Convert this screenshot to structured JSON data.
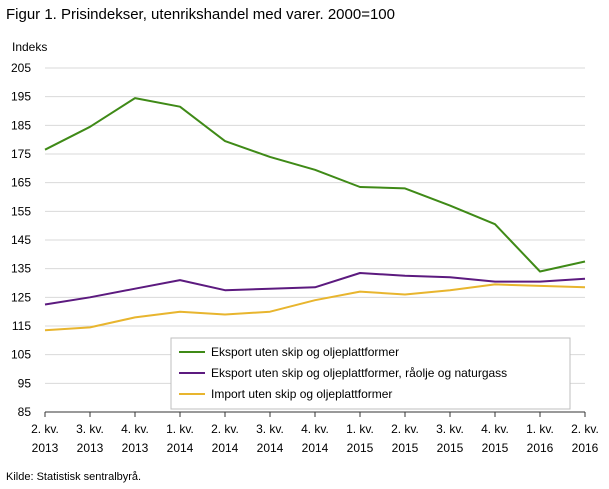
{
  "figure_title": "Figur 1. Prisindekser, utenrikshandel med varer. 2000=100",
  "source": "Kilde: Statistisk sentralbyrå.",
  "colors": {
    "series_0": "#3f8a17",
    "series_1": "#5c1a7f",
    "series_2": "#e8b52e",
    "grid": "#d9d9d9",
    "axis": "#333333"
  },
  "chart_data": {
    "type": "line",
    "title": "Figur 1. Prisindekser, utenrikshandel med varer. 2000=100",
    "ylabel": "Indeks",
    "xlabel": "",
    "ylim": [
      85,
      205
    ],
    "yticks": [
      85,
      95,
      105,
      115,
      125,
      135,
      145,
      155,
      165,
      175,
      185,
      195,
      205
    ],
    "grid": "horizontal",
    "legend_position": "bottom-right",
    "categories": [
      [
        "2. kv.",
        "2013"
      ],
      [
        "3. kv.",
        "2013"
      ],
      [
        "4. kv.",
        "2013"
      ],
      [
        "1. kv.",
        "2014"
      ],
      [
        "2. kv.",
        "2014"
      ],
      [
        "3. kv.",
        "2014"
      ],
      [
        "4. kv.",
        "2014"
      ],
      [
        "1. kv.",
        "2015"
      ],
      [
        "2. kv.",
        "2015"
      ],
      [
        "3. kv.",
        "2015"
      ],
      [
        "4. kv.",
        "2015"
      ],
      [
        "1. kv.",
        "2016"
      ],
      [
        "2. kv.",
        "2016"
      ]
    ],
    "series": [
      {
        "name": "Eksport uten skip og oljeplattformer",
        "values": [
          176.5,
          184.5,
          194.5,
          191.5,
          179.5,
          174,
          169.5,
          163.5,
          163,
          157,
          150.5,
          134,
          137.5
        ]
      },
      {
        "name": "Eksport uten skip og oljeplattformer, råolje og naturgass",
        "values": [
          122.5,
          125,
          128,
          131,
          127.5,
          128,
          128.5,
          133.5,
          132.5,
          132,
          130.5,
          130.5,
          131.5
        ]
      },
      {
        "name": "Import uten skip og oljeplattformer",
        "values": [
          113.5,
          114.5,
          118,
          120,
          119,
          120,
          124,
          127,
          126,
          127.5,
          129.5,
          129,
          128.5
        ]
      }
    ]
  }
}
